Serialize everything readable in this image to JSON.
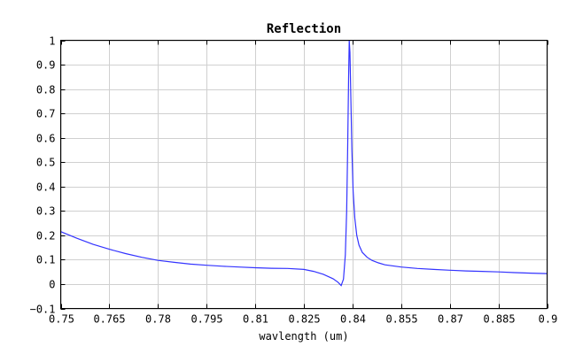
{
  "chart_data": {
    "type": "line",
    "title": "Reflection",
    "xlabel": "wavlength (um)",
    "ylabel": "",
    "xlim": [
      0.75,
      0.9
    ],
    "ylim": [
      -0.1,
      1
    ],
    "grid": true,
    "x_ticks": [
      0.75,
      0.765,
      0.78,
      0.795,
      0.81,
      0.825,
      0.84,
      0.855,
      0.87,
      0.885,
      0.9
    ],
    "x_tick_labels": [
      "0.75",
      "0.765",
      "0.78",
      "0.795",
      "0.81",
      "0.825",
      "0.84",
      "0.855",
      "0.87",
      "0.885",
      "0.9"
    ],
    "y_ticks": [
      -0.1,
      0,
      0.1,
      0.2,
      0.3,
      0.4,
      0.5,
      0.6,
      0.7,
      0.8,
      0.9,
      1
    ],
    "y_tick_labels": [
      "−0.1",
      "0",
      "0.1",
      "0.2",
      "0.3",
      "0.4",
      "0.5",
      "0.6",
      "0.7",
      "0.8",
      "0.9",
      "1"
    ],
    "series": [
      {
        "color": "#3333ff",
        "x": [
          0.75,
          0.755,
          0.76,
          0.765,
          0.77,
          0.775,
          0.78,
          0.785,
          0.79,
          0.795,
          0.8,
          0.805,
          0.81,
          0.815,
          0.82,
          0.825,
          0.828,
          0.831,
          0.834,
          0.8355,
          0.8365,
          0.8372,
          0.8378,
          0.8382,
          0.8385,
          0.8388,
          0.839,
          0.8392,
          0.8395,
          0.8398,
          0.8402,
          0.8407,
          0.8413,
          0.842,
          0.843,
          0.8445,
          0.846,
          0.848,
          0.85,
          0.855,
          0.86,
          0.865,
          0.87,
          0.875,
          0.88,
          0.885,
          0.89,
          0.895,
          0.9
        ],
        "y": [
          0.215,
          0.188,
          0.163,
          0.143,
          0.125,
          0.11,
          0.097,
          0.089,
          0.082,
          0.077,
          0.073,
          0.07,
          0.067,
          0.065,
          0.064,
          0.06,
          0.052,
          0.04,
          0.022,
          0.008,
          -0.006,
          0.02,
          0.12,
          0.3,
          0.55,
          0.85,
          1.0,
          0.95,
          0.75,
          0.55,
          0.38,
          0.27,
          0.2,
          0.16,
          0.13,
          0.11,
          0.097,
          0.087,
          0.079,
          0.07,
          0.064,
          0.06,
          0.057,
          0.054,
          0.052,
          0.05,
          0.047,
          0.045,
          0.043
        ]
      }
    ]
  }
}
